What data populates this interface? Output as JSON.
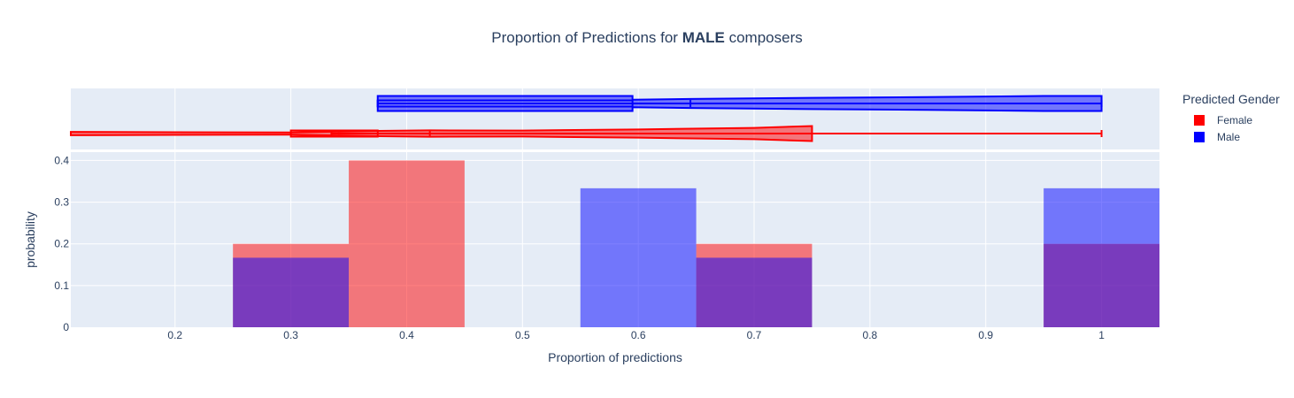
{
  "chart_data": {
    "type": "bar",
    "title_prefix": "Proportion of Predictions for ",
    "title_bold": "MALE",
    "title_suffix": " composers",
    "xlabel": "Proportion of predictions",
    "ylabel": "probability",
    "xlim": [
      0.11,
      1.05
    ],
    "ylim": [
      0,
      0.42
    ],
    "xticks": [
      {
        "value": 0.2,
        "label": "0.2"
      },
      {
        "value": 0.3,
        "label": "0.3"
      },
      {
        "value": 0.4,
        "label": "0.4"
      },
      {
        "value": 0.5,
        "label": "0.5"
      },
      {
        "value": 0.6,
        "label": "0.6"
      },
      {
        "value": 0.7,
        "label": "0.7"
      },
      {
        "value": 0.8,
        "label": "0.8"
      },
      {
        "value": 0.9,
        "label": "0.9"
      },
      {
        "value": 1.0,
        "label": "1"
      }
    ],
    "yticks": [
      {
        "value": 0,
        "label": "0"
      },
      {
        "value": 0.1,
        "label": "0.1"
      },
      {
        "value": 0.2,
        "label": "0.2"
      },
      {
        "value": 0.3,
        "label": "0.3"
      },
      {
        "value": 0.4,
        "label": "0.4"
      }
    ],
    "bin_width": 0.1,
    "legend_title": "Predicted Gender",
    "legend_position": "top-right",
    "series": [
      {
        "name": "Female",
        "color": "#ff0000",
        "bins": [
          {
            "center": 0.3,
            "value": 0.2
          },
          {
            "center": 0.4,
            "value": 0.4
          },
          {
            "center": 0.7,
            "value": 0.2
          },
          {
            "center": 1.0,
            "value": 0.2
          }
        ],
        "violin": {
          "min": 0.11,
          "q1": 0.335,
          "median": 0.42,
          "q3": 0.75,
          "max": 1.0,
          "box_low": 0.3,
          "box_high": 0.375,
          "density": [
            [
              0.11,
              0.22
            ],
            [
              0.2,
              0.18
            ],
            [
              0.3,
              0.15
            ],
            [
              0.375,
              0.35
            ],
            [
              0.42,
              0.42
            ],
            [
              0.5,
              0.4
            ],
            [
              0.6,
              0.55
            ],
            [
              0.7,
              0.75
            ],
            [
              0.75,
              1.0
            ]
          ]
        }
      },
      {
        "name": "Male",
        "color": "#0000ff",
        "bins": [
          {
            "center": 0.3,
            "value": 0.1667
          },
          {
            "center": 0.6,
            "value": 0.3333
          },
          {
            "center": 0.7,
            "value": 0.1667
          },
          {
            "center": 1.0,
            "value": 0.3333
          }
        ],
        "violin": {
          "min": 0.33,
          "q1": 0.375,
          "median": 0.645,
          "q3": 0.95,
          "max": 1.0,
          "box_low": 0.375,
          "box_high": 0.595,
          "density": [
            [
              0.375,
              1.0
            ],
            [
              0.595,
              1.0
            ],
            [
              0.595,
              0.5
            ],
            [
              0.645,
              0.6
            ],
            [
              0.75,
              0.75
            ],
            [
              0.85,
              0.85
            ],
            [
              0.95,
              1.0
            ],
            [
              1.0,
              1.0
            ]
          ]
        }
      }
    ]
  }
}
